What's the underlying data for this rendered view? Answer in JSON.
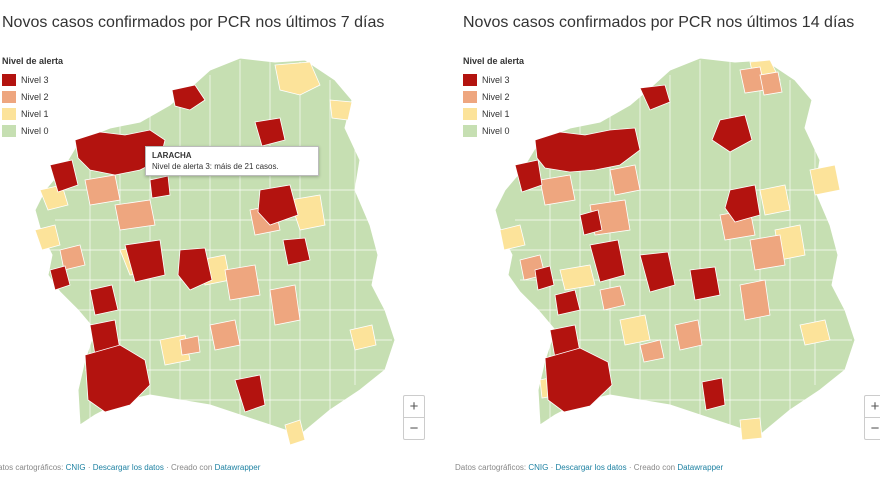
{
  "colors": {
    "nivel3": "#b3130f",
    "nivel2": "#eea67f",
    "nivel1": "#fce39a",
    "nivel0": "#c6dfb2",
    "border": "#ffffff",
    "link": "#1d81a2"
  },
  "legend": {
    "title": "Nivel de alerta",
    "items": [
      "Nivel 3",
      "Nivel 2",
      "Nivel 1",
      "Nivel 0"
    ]
  },
  "maps": [
    {
      "title": "Novos casos confirmados por PCR nos últimos 7 días",
      "tooltip": {
        "title": "LARACHA",
        "text": "Nivel de alerta 3: máis de 21 casos."
      }
    },
    {
      "title": "Novos casos confirmados por PCR nos últimos 14 días"
    }
  ],
  "zoom": {
    "in": "+",
    "out": "−"
  },
  "footer": {
    "prefix": "Datos cartográficos: ",
    "cnig": "CNIG",
    "sep1": " · ",
    "download": "Descargar los datos",
    "sep2": " · Creado con ",
    "datawrapper": "Datawrapper"
  },
  "footer_left_prefix": "atos cartográficos: "
}
